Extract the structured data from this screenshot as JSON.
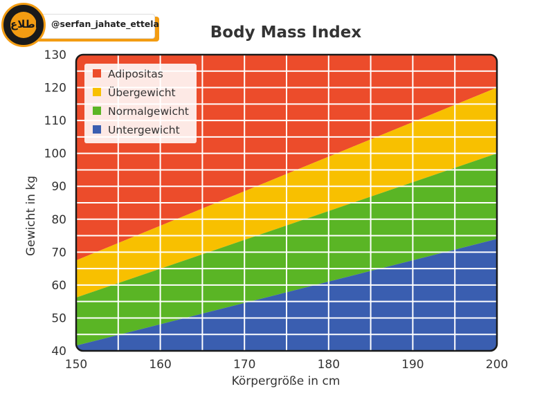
{
  "watermark": {
    "handle": "@serfan_jahate_ettela",
    "logo_glyph": "اطلاع"
  },
  "chart_data": {
    "type": "area",
    "title": "Body Mass Index",
    "xlabel": "Körpergröße in cm",
    "ylabel": "Gewicht in kg",
    "xlim": [
      150,
      200
    ],
    "ylim": [
      40,
      130
    ],
    "xticks": [
      "150",
      "160",
      "170",
      "180",
      "190",
      "200"
    ],
    "yticks": [
      "40",
      "50",
      "60",
      "70",
      "80",
      "90",
      "100",
      "110",
      "120",
      "130"
    ],
    "grid": true,
    "grid_x_step": 5,
    "grid_y_step": 5,
    "legend_position": "top-left",
    "x": [
      150,
      200
    ],
    "series": [
      {
        "name": "Adipositas",
        "color": "#ec4c2b",
        "lower": [
          67.5,
          120
        ],
        "upper": [
          130,
          130
        ]
      },
      {
        "name": "Übergewicht",
        "color": "#f8c000",
        "lower": [
          56.2,
          100
        ],
        "upper": [
          67.5,
          120
        ]
      },
      {
        "name": "Normalgewicht",
        "color": "#5ab525",
        "lower": [
          41.6,
          74
        ],
        "upper": [
          56.2,
          100
        ]
      },
      {
        "name": "Untergewicht",
        "color": "#3a5eb0",
        "lower": [
          40,
          40
        ],
        "upper": [
          41.6,
          74
        ]
      }
    ]
  }
}
